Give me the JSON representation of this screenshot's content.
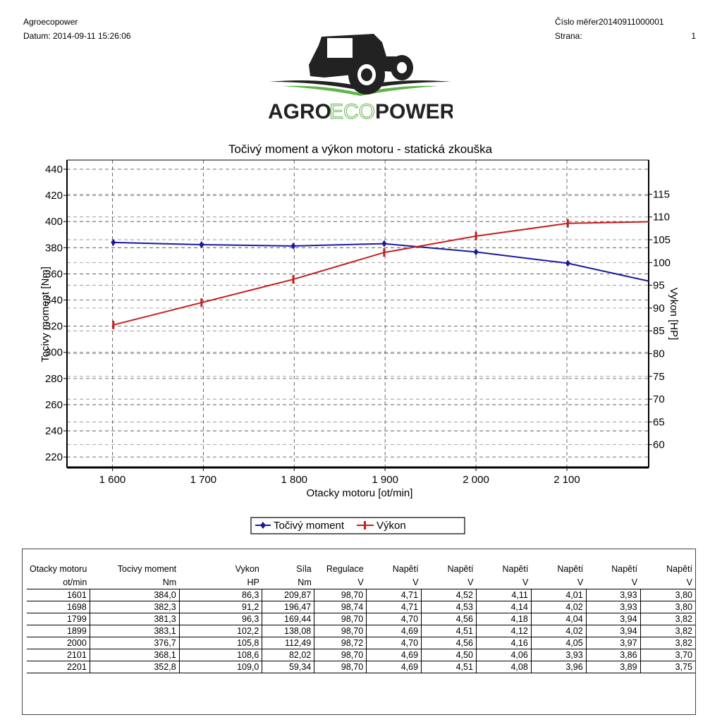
{
  "header": {
    "company": "Agroecopower",
    "date_label": "Datum: 2014-09-11 15:26:06",
    "measurement_label": "Číslo měřer20140911000001",
    "page_label": "Strana:",
    "page_number": "1"
  },
  "logo": {
    "text_agro": "AGRO",
    "text_eco": "ECO",
    "text_power": "POWER",
    "colors": {
      "dark": "#222222",
      "green": "#5fb548",
      "accent": "#2e8b3a"
    }
  },
  "chart_data": {
    "type": "line",
    "title": "Točivý moment a výkon motoru - statická zkouška",
    "xlabel": "Otacky motoru [ot/min]",
    "ylabel_left": "Tocivy moment [Nm]",
    "ylabel_right": "Vykon [HP]",
    "xlim": [
      1550,
      2190
    ],
    "ylim_left": [
      212,
      447
    ],
    "ylim_right": [
      55,
      122.5
    ],
    "x_ticks": [
      1600,
      1700,
      1800,
      1900,
      2000,
      2100
    ],
    "x_tick_labels": [
      "1 600",
      "1 700",
      "1 800",
      "1 900",
      "2 000",
      "2 100"
    ],
    "y_ticks_left": [
      220,
      240,
      260,
      280,
      300,
      320,
      340,
      360,
      380,
      400,
      420,
      440
    ],
    "y_ticks_right": [
      60,
      65,
      70,
      75,
      80,
      85,
      90,
      95,
      100,
      105,
      110,
      115
    ],
    "grid": true,
    "legend_position": "bottom-center",
    "series": [
      {
        "name": "Točivý moment",
        "axis": "left",
        "color": "#1a1a9c",
        "marker": "diamond",
        "x": [
          1601,
          1698,
          1799,
          1899,
          2000,
          2101,
          2201
        ],
        "values": [
          384.0,
          382.3,
          381.3,
          383.1,
          376.7,
          368.1,
          352.8
        ]
      },
      {
        "name": "Výkon",
        "axis": "right",
        "color": "#c81e1e",
        "marker": "bar",
        "x": [
          1601,
          1698,
          1799,
          1899,
          2000,
          2101,
          2201
        ],
        "values": [
          86.3,
          91.2,
          96.3,
          102.2,
          105.8,
          108.6,
          109.0
        ]
      }
    ]
  },
  "table": {
    "headers": [
      "Otacky motoru",
      "Tocivy moment",
      "Vykon",
      "Síla",
      "Regulace",
      "Napětí",
      "Napětí",
      "Napětí",
      "Napětí",
      "Napětí",
      "Napětí"
    ],
    "units": [
      "ot/min",
      "Nm",
      "HP",
      "Nm",
      "V",
      "V",
      "V",
      "V",
      "V",
      "V",
      "V"
    ],
    "rows": [
      [
        "1601",
        "384,0",
        "86,3",
        "209,87",
        "98,70",
        "4,71",
        "4,52",
        "4,11",
        "4,01",
        "3,93",
        "3,80"
      ],
      [
        "1698",
        "382,3",
        "91,2",
        "196,47",
        "98,74",
        "4,71",
        "4,53",
        "4,14",
        "4,02",
        "3,93",
        "3,80"
      ],
      [
        "1799",
        "381,3",
        "96,3",
        "169,44",
        "98,70",
        "4,70",
        "4,56",
        "4,18",
        "4,04",
        "3,94",
        "3,82"
      ],
      [
        "1899",
        "383,1",
        "102,2",
        "138,08",
        "98,70",
        "4,69",
        "4,51",
        "4,12",
        "4,02",
        "3,94",
        "3,82"
      ],
      [
        "2000",
        "376,7",
        "105,8",
        "112,49",
        "98,72",
        "4,70",
        "4,56",
        "4,16",
        "4,05",
        "3,97",
        "3,82"
      ],
      [
        "2101",
        "368,1",
        "108,6",
        "82,02",
        "98,70",
        "4,69",
        "4,50",
        "4,06",
        "3,93",
        "3,86",
        "3,70"
      ],
      [
        "2201",
        "352,8",
        "109,0",
        "59,34",
        "98,70",
        "4,69",
        "4,51",
        "4,08",
        "3,96",
        "3,89",
        "3,75"
      ]
    ]
  }
}
